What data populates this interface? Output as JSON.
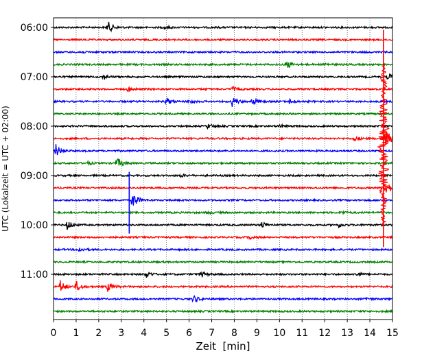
{
  "chart_data": {
    "type": "line",
    "title": "",
    "xlabel": "Zeit  [min]",
    "ylabel": "UTC (Lokalzeit = UTC + 02:00)",
    "xlim": [
      0,
      15
    ],
    "x_ticks": [
      "0",
      "1",
      "2",
      "3",
      "4",
      "5",
      "6",
      "7",
      "8",
      "9",
      "10",
      "11",
      "12",
      "13",
      "14",
      "15"
    ],
    "y_tick_labels": [
      "06:00",
      "07:00",
      "08:00",
      "09:00",
      "10:00",
      "11:00"
    ],
    "y_tick_rows": [
      0,
      4,
      8,
      12,
      16,
      20
    ],
    "grid": "vertical dotted",
    "trace_interval_minutes": 15,
    "series_colors": [
      "#000000",
      "#ff0000",
      "#0000ff",
      "#008000"
    ],
    "traces": [
      {
        "start": "06:00",
        "color": "#000000",
        "events": [
          {
            "t": 2.4,
            "amp": 0.55
          },
          {
            "t": 4.9,
            "amp": 0.15
          }
        ]
      },
      {
        "start": "06:15",
        "color": "#ff0000",
        "events": []
      },
      {
        "start": "06:30",
        "color": "#0000ff",
        "events": [
          {
            "t": 1.1,
            "amp": 0.12
          }
        ]
      },
      {
        "start": "06:45",
        "color": "#008000",
        "events": [
          {
            "t": 10.3,
            "amp": 0.45
          },
          {
            "t": 12.0,
            "amp": 0.1
          }
        ]
      },
      {
        "start": "07:00",
        "color": "#000000",
        "events": [
          {
            "t": 2.2,
            "amp": 0.25
          },
          {
            "t": 14.8,
            "amp": 0.3
          }
        ]
      },
      {
        "start": "07:15",
        "color": "#ff0000",
        "events": [
          {
            "t": 3.3,
            "amp": 0.2
          },
          {
            "t": 7.9,
            "amp": 0.2
          }
        ]
      },
      {
        "start": "07:30",
        "color": "#0000ff",
        "events": [
          {
            "t": 5.0,
            "amp": 0.3
          },
          {
            "t": 6.0,
            "amp": 0.2
          },
          {
            "t": 7.9,
            "amp": 0.45
          },
          {
            "t": 8.8,
            "amp": 0.35
          },
          {
            "t": 10.4,
            "amp": 0.25
          }
        ]
      },
      {
        "start": "07:45",
        "color": "#008000",
        "events": []
      },
      {
        "start": "08:00",
        "color": "#000000",
        "events": [
          {
            "t": 6.8,
            "amp": 0.25
          },
          {
            "t": 10.0,
            "amp": 0.15
          }
        ]
      },
      {
        "start": "08:15",
        "color": "#ff0000",
        "events": [
          {
            "t": 13.3,
            "amp": 0.25
          },
          {
            "t": 14.7,
            "amp": 0.9
          }
        ]
      },
      {
        "start": "08:30",
        "color": "#0000ff",
        "events": [
          {
            "t": 0.1,
            "amp": 0.6
          }
        ]
      },
      {
        "start": "08:45",
        "color": "#008000",
        "events": [
          {
            "t": 2.8,
            "amp": 0.55
          },
          {
            "t": 1.5,
            "amp": 0.12
          }
        ]
      },
      {
        "start": "09:00",
        "color": "#000000",
        "events": [
          {
            "t": 5.6,
            "amp": 0.15
          }
        ]
      },
      {
        "start": "09:15",
        "color": "#ff0000",
        "events": [
          {
            "t": 14.7,
            "amp": 0.8
          }
        ]
      },
      {
        "start": "09:30",
        "color": "#0000ff",
        "events": [
          {
            "t": 3.5,
            "amp": 0.8
          }
        ]
      },
      {
        "start": "09:45",
        "color": "#008000",
        "events": [
          {
            "t": 6.8,
            "amp": 0.15
          },
          {
            "t": 12.7,
            "amp": 0.15
          }
        ]
      },
      {
        "start": "10:00",
        "color": "#000000",
        "events": [
          {
            "t": 0.6,
            "amp": 0.45
          },
          {
            "t": 9.2,
            "amp": 0.3
          },
          {
            "t": 12.6,
            "amp": 0.2
          }
        ]
      },
      {
        "start": "10:15",
        "color": "#ff0000",
        "events": [
          {
            "t": 8.7,
            "amp": 0.15
          }
        ]
      },
      {
        "start": "10:30",
        "color": "#0000ff",
        "events": [
          {
            "t": 1.1,
            "amp": 0.25
          }
        ]
      },
      {
        "start": "10:45",
        "color": "#008000",
        "events": []
      },
      {
        "start": "11:00",
        "color": "#000000",
        "events": [
          {
            "t": 4.1,
            "amp": 0.3
          },
          {
            "t": 6.5,
            "amp": 0.3
          },
          {
            "t": 13.4,
            "amp": 0.2
          }
        ]
      },
      {
        "start": "11:15",
        "color": "#ff0000",
        "events": [
          {
            "t": 0.3,
            "amp": 0.55
          },
          {
            "t": 1.0,
            "amp": 0.45
          },
          {
            "t": 2.4,
            "amp": 0.4
          }
        ]
      },
      {
        "start": "11:30",
        "color": "#0000ff",
        "events": [
          {
            "t": 6.2,
            "amp": 0.35
          },
          {
            "t": 13.8,
            "amp": 0.15
          }
        ]
      },
      {
        "start": "11:45",
        "color": "#008000",
        "events": []
      }
    ],
    "large_events": [
      {
        "t": 3.35,
        "rows": [
          11.7,
          16.7
        ],
        "color": "#0000ff"
      },
      {
        "t": 14.6,
        "rows": [
          0.2,
          17.8
        ],
        "color": "#ff0000"
      }
    ]
  }
}
